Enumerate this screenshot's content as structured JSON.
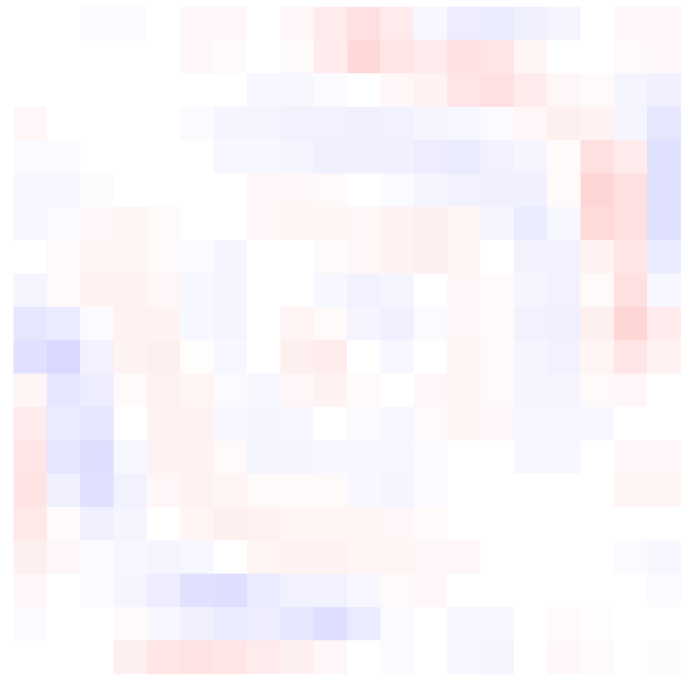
{
  "chart_data": {
    "type": "heatmap",
    "tick_labels": false,
    "zlim": [
      -1,
      1
    ],
    "cells": [
      [
        0,
        0,
        -0.02,
        -0.02,
        0,
        0.03,
        0.03,
        0,
        0.03,
        0.08,
        0.12,
        0.08,
        -0.03,
        -0.07,
        -0.08,
        -0.06,
        -0.04,
        0,
        0.03,
        0.03
      ],
      [
        0,
        0,
        0,
        0,
        0,
        0.03,
        0.02,
        0,
        0.02,
        0.08,
        0.15,
        0.1,
        0.08,
        0.12,
        0.1,
        0.04,
        0,
        0,
        0.02,
        0.03
      ],
      [
        0,
        0,
        0,
        0,
        0,
        0,
        0,
        -0.03,
        -0.03,
        -0.02,
        0,
        0.03,
        0.05,
        0.1,
        0.12,
        0.08,
        0.03,
        0.02,
        -0.04,
        -0.06
      ],
      [
        0.03,
        0,
        0,
        0,
        0,
        -0.02,
        -0.04,
        -0.04,
        -0.05,
        -0.05,
        -0.06,
        -0.05,
        -0.04,
        -0.03,
        -0.02,
        0.03,
        0.06,
        0.05,
        -0.04,
        -0.1
      ],
      [
        -0.02,
        -0.02,
        0,
        0,
        0,
        0,
        -0.03,
        -0.03,
        -0.04,
        -0.06,
        -0.06,
        -0.06,
        -0.07,
        -0.08,
        -0.05,
        -0.04,
        0.02,
        0.12,
        0.08,
        -0.12
      ],
      [
        -0.03,
        -0.03,
        -0.01,
        0,
        0,
        0,
        0,
        0.03,
        0.03,
        0.02,
        0,
        -0.02,
        -0.04,
        -0.05,
        -0.06,
        -0.06,
        0.02,
        0.16,
        0.12,
        -0.12
      ],
      [
        -0.03,
        -0.02,
        0.03,
        0.04,
        0.02,
        0,
        0,
        0.03,
        0.04,
        0.04,
        0.03,
        0.05,
        0.06,
        0.04,
        -0.04,
        -0.08,
        -0.03,
        0.14,
        0.12,
        -0.12
      ],
      [
        0,
        0.02,
        0.04,
        0.04,
        0.02,
        -0.02,
        -0.04,
        0,
        0,
        0.02,
        0.03,
        0.05,
        0.06,
        0.04,
        0,
        -0.05,
        -0.05,
        0.05,
        0.1,
        -0.08
      ],
      [
        -0.04,
        0.02,
        0.05,
        0.05,
        0.03,
        -0.03,
        -0.04,
        0,
        0,
        -0.03,
        -0.05,
        -0.04,
        0,
        0.03,
        0.02,
        -0.04,
        -0.05,
        0.02,
        0.12,
        -0.03
      ],
      [
        -0.1,
        -0.08,
        -0.02,
        0.05,
        0.05,
        -0.03,
        -0.04,
        0,
        0.04,
        0.02,
        -0.04,
        -0.06,
        -0.02,
        0.03,
        0.02,
        -0.05,
        -0.06,
        0.06,
        0.16,
        0.08
      ],
      [
        -0.12,
        -0.15,
        -0.05,
        0.05,
        0.06,
        0.01,
        -0.03,
        0,
        0.06,
        0.07,
        0,
        -0.03,
        0,
        0.04,
        0.02,
        -0.04,
        -0.05,
        0.04,
        0.1,
        0.05
      ],
      [
        0.04,
        -0.1,
        -0.07,
        0.02,
        0.05,
        0.04,
        -0.02,
        -0.03,
        0.03,
        0.05,
        0.02,
        0,
        0.03,
        0.04,
        0.02,
        -0.04,
        -0.04,
        0.02,
        0.03,
        0
      ],
      [
        0.08,
        -0.08,
        -0.1,
        0,
        0.05,
        0.05,
        -0.03,
        -0.04,
        -0.03,
        0,
        -0.02,
        -0.03,
        0.02,
        0.04,
        0.03,
        -0.03,
        -0.03,
        -0.03,
        0,
        0
      ],
      [
        0.1,
        -0.1,
        -0.13,
        -0.03,
        0.05,
        0.05,
        0.02,
        -0.04,
        -0.04,
        -0.03,
        -0.03,
        -0.03,
        -0.02,
        0,
        0,
        -0.03,
        -0.03,
        0,
        0.03,
        0.03
      ],
      [
        0.11,
        -0.06,
        -0.12,
        -0.05,
        0.03,
        0.05,
        0.04,
        0.02,
        0.02,
        0.02,
        -0.03,
        -0.04,
        -0.02,
        0,
        0,
        0,
        0,
        0,
        0.04,
        0.04
      ],
      [
        0.09,
        0.02,
        -0.06,
        -0.04,
        0,
        0.04,
        0.06,
        0.05,
        0.04,
        0.04,
        0.04,
        0.03,
        0.02,
        0,
        0,
        0,
        0,
        0,
        0,
        0
      ],
      [
        0.06,
        0.03,
        -0.02,
        -0.03,
        -0.04,
        -0.03,
        0,
        0.04,
        0.05,
        0.05,
        0.04,
        0.04,
        0.03,
        0.03,
        0,
        0,
        0,
        0,
        -0.02,
        -0.03
      ],
      [
        0.03,
        0,
        -0.02,
        -0.04,
        -0.07,
        -0.12,
        -0.13,
        -0.08,
        -0.05,
        -0.05,
        -0.03,
        0.02,
        0.03,
        0,
        0,
        0,
        0,
        0,
        0,
        -0.02
      ],
      [
        -0.02,
        0,
        0,
        0.02,
        -0.03,
        -0.06,
        -0.08,
        -0.07,
        -0.1,
        -0.13,
        -0.08,
        -0.02,
        0,
        -0.03,
        -0.03,
        0,
        0.02,
        0.01,
        0,
        0
      ],
      [
        0,
        0,
        0,
        0.06,
        0.1,
        0.11,
        0.1,
        0.08,
        0.06,
        0.03,
        0,
        -0.02,
        0,
        -0.03,
        -0.04,
        0,
        0.03,
        0.02,
        0,
        -0.01
      ]
    ]
  }
}
